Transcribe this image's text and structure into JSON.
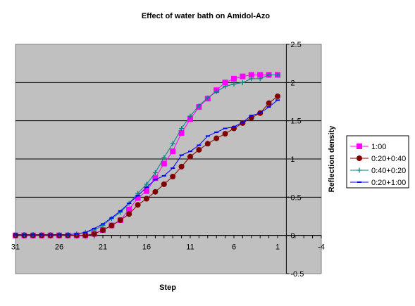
{
  "chart_data": {
    "type": "line",
    "title": "Effect of water bath on Amidol-Azo",
    "xlabel": "Step",
    "ylabel": "Reflection density",
    "xlim": [
      31,
      -4
    ],
    "ylim": [
      -0.5,
      2.5
    ],
    "x_ticks": [
      "31",
      "26",
      "21",
      "16",
      "11",
      "6",
      "1",
      "-4"
    ],
    "y_ticks": [
      "2.5",
      "2",
      "1.5",
      "1",
      "0.5",
      "0",
      "-0.5"
    ],
    "grid": "horizontal",
    "legend_position": "right",
    "x": [
      31,
      30,
      29,
      28,
      27,
      26,
      25,
      24,
      23,
      22,
      21,
      20,
      19,
      18,
      17,
      16,
      15,
      14,
      13,
      12,
      11,
      10,
      9,
      8,
      7,
      6,
      5,
      4,
      3,
      2,
      1
    ],
    "series": [
      {
        "name": "1:00",
        "color": "#ff00ff",
        "marker": "square",
        "values": [
          0,
          0,
          0,
          0,
          0,
          0,
          0,
          0,
          0,
          0.02,
          0.07,
          0.13,
          0.2,
          0.34,
          0.49,
          0.58,
          0.75,
          0.94,
          1.1,
          1.34,
          1.52,
          1.68,
          1.79,
          1.9,
          2.0,
          2.05,
          2.08,
          2.1,
          2.1,
          2.1,
          2.1
        ]
      },
      {
        "name": "0:20+0:40",
        "color": "#800000",
        "marker": "circle",
        "values": [
          0,
          0,
          0,
          0,
          0,
          0,
          0,
          0,
          0,
          0.02,
          0.07,
          0.13,
          0.2,
          0.28,
          0.4,
          0.48,
          0.57,
          0.67,
          0.77,
          0.9,
          1.03,
          1.12,
          1.2,
          1.27,
          1.33,
          1.4,
          1.47,
          1.54,
          1.6,
          1.73,
          1.82
        ]
      },
      {
        "name": "0:40+0:20",
        "color": "#008080",
        "marker": "plus",
        "values": [
          0.01,
          0.01,
          0.01,
          0.01,
          0.01,
          0.01,
          0.01,
          0.02,
          0.04,
          0.07,
          0.13,
          0.22,
          0.3,
          0.42,
          0.55,
          0.67,
          0.82,
          1.02,
          1.2,
          1.4,
          1.56,
          1.7,
          1.8,
          1.88,
          1.95,
          1.98,
          2.0,
          2.05,
          2.05,
          2.1,
          2.1
        ]
      },
      {
        "name": "0:20+1:00",
        "color": "#0000ff",
        "marker": "dash",
        "values": [
          0.01,
          0.01,
          0.01,
          0.01,
          0.01,
          0.01,
          0.01,
          0.02,
          0.04,
          0.09,
          0.15,
          0.23,
          0.32,
          0.42,
          0.52,
          0.63,
          0.73,
          0.78,
          0.88,
          1.05,
          1.1,
          1.18,
          1.3,
          1.35,
          1.4,
          1.42,
          1.48,
          1.57,
          1.6,
          1.68,
          1.77
        ]
      }
    ]
  }
}
